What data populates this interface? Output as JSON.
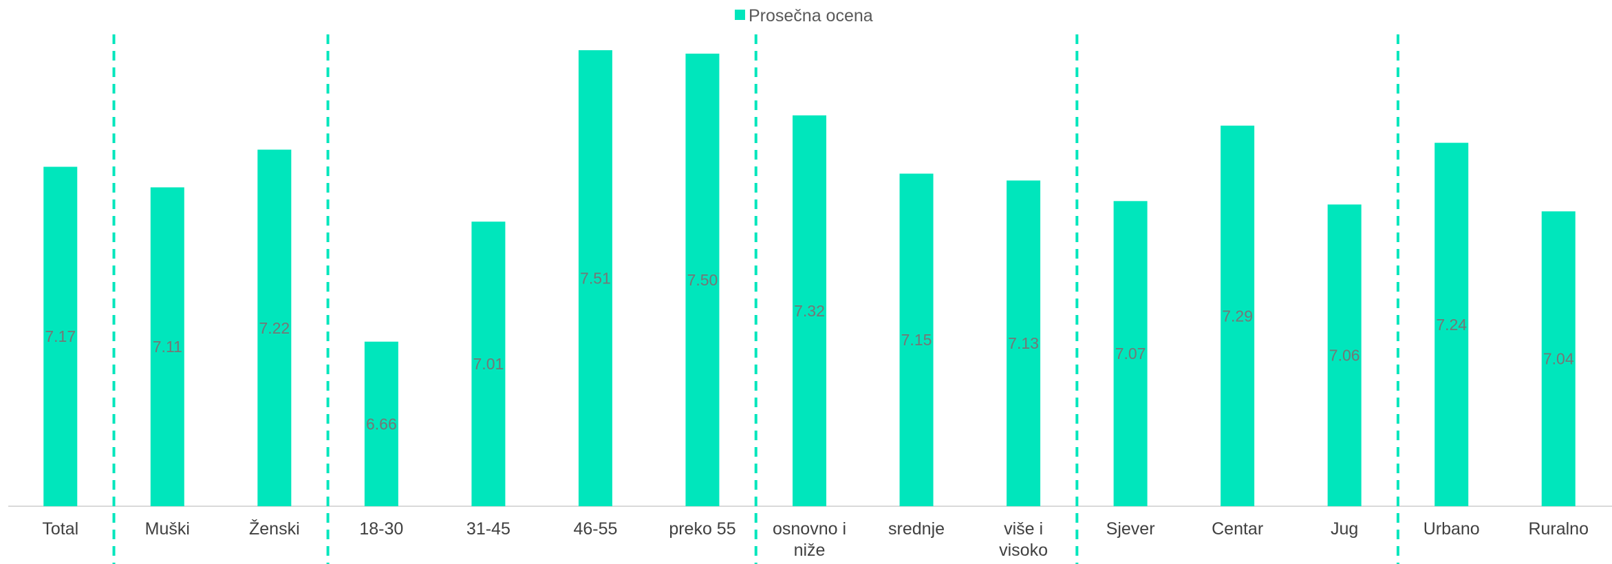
{
  "chart_data": {
    "type": "bar",
    "categories": [
      "Total",
      "Muški",
      "Ženski",
      "18-30",
      "31-45",
      "46-55",
      "preko 55",
      "osnovno i niže",
      "srednje",
      "više i visoko",
      "Sjever",
      "Centar",
      "Jug",
      "Urbano",
      "Ruralno"
    ],
    "series": [
      {
        "name": "Prosečna ocena",
        "values": [
          7.17,
          7.11,
          7.22,
          6.66,
          7.01,
          7.51,
          7.5,
          7.32,
          7.15,
          7.13,
          7.07,
          7.29,
          7.06,
          7.24,
          7.04
        ]
      }
    ],
    "data_labels": [
      "7.17",
      "7.11",
      "7.22",
      "6.66",
      "7.01",
      "7.51",
      "7.50",
      "7.32",
      "7.15",
      "7.13",
      "7.07",
      "7.29",
      "7.06",
      "7.24",
      "7.04"
    ],
    "group_separators_after": [
      0,
      2,
      6,
      9,
      12
    ],
    "ylim": [
      6.18,
      7.51
    ],
    "legend_position": "top-center",
    "grid": false,
    "colors": {
      "bar": "#00E6BC",
      "separator": "#00E6BC",
      "axis": "#D9D9D9",
      "label": "#767676",
      "tick": "#404040"
    }
  }
}
